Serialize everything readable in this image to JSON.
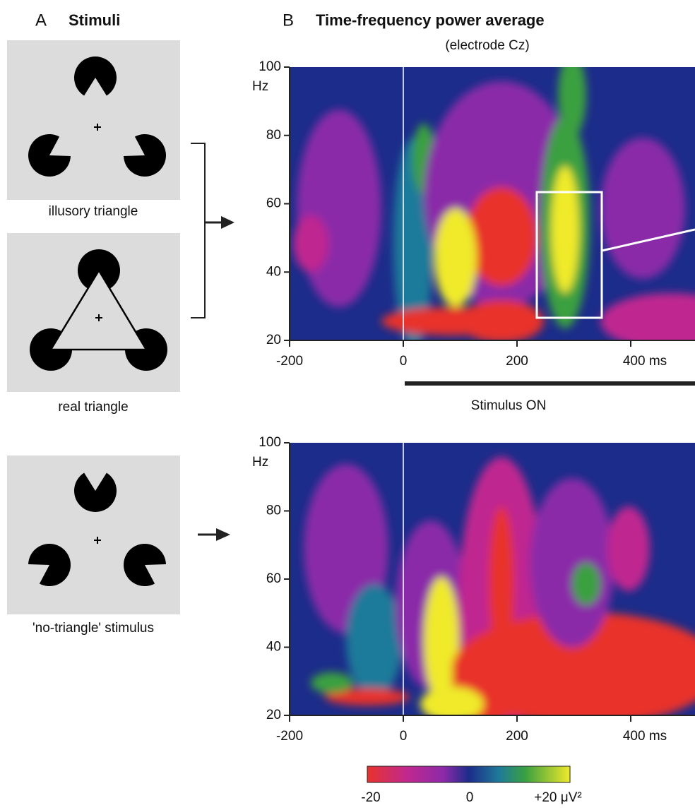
{
  "panel_a": {
    "label": "A",
    "title": "Stimuli",
    "stimuli": [
      {
        "caption": "illusory triangle"
      },
      {
        "caption": "real triangle"
      },
      {
        "caption": "'no-triangle' stimulus"
      }
    ]
  },
  "panel_b": {
    "label": "B",
    "title": "Time-frequency power average",
    "subtitle": "(electrode Cz)",
    "plots": [
      {
        "yticks": [
          "100",
          "80",
          "60",
          "40",
          "20"
        ],
        "y_unit": "Hz",
        "xticks": [
          "-200",
          "0",
          "200",
          "400 ms"
        ]
      },
      {
        "yticks": [
          "100",
          "80",
          "60",
          "40",
          "20"
        ],
        "y_unit": "Hz",
        "xticks": [
          "-200",
          "0",
          "200",
          "400 ms"
        ]
      }
    ],
    "stimulus_bar": "Stimulus ON",
    "colorbar": {
      "labels": [
        "-20",
        "0",
        "+20 μV²"
      ]
    }
  }
}
